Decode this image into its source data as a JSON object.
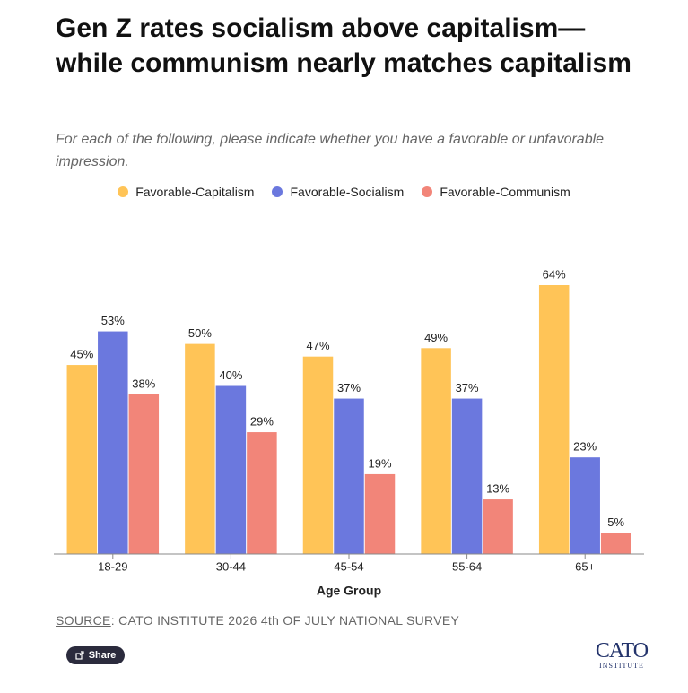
{
  "chart_data": {
    "type": "bar",
    "title": "Gen Z rates socialism above capitalism—while communism nearly matches capitalism",
    "subtitle": "For each of the following, please indicate whether you have a favorable or unfavorable impression.",
    "x_label": "Age Group",
    "categories": [
      "18-29",
      "30-44",
      "45-54",
      "55-64",
      "65+"
    ],
    "series": [
      {
        "name": "Favorable-Capitalism",
        "color": "#ffc457",
        "values": [
          45,
          50,
          47,
          49,
          64
        ],
        "value_labels": [
          "45%",
          "50%",
          "47%",
          "49%",
          "64%"
        ]
      },
      {
        "name": "Favorable-Socialism",
        "color": "#6b78de",
        "values": [
          53,
          40,
          37,
          37,
          23
        ],
        "value_labels": [
          "53%",
          "40%",
          "37%",
          "37%",
          "23%"
        ]
      },
      {
        "name": "Favorable-Communism",
        "color": "#f28579",
        "values": [
          38,
          29,
          19,
          13,
          5
        ],
        "value_labels": [
          "38%",
          "29%",
          "19%",
          "13%",
          "5%"
        ]
      }
    ]
  },
  "source": {
    "label": "SOURCE",
    "text": ": CATO INSTITUTE 2026 4th OF JULY NATIONAL SURVEY"
  },
  "share": "Share",
  "logo": {
    "name": "CATO",
    "sub": "INSTITUTE"
  }
}
